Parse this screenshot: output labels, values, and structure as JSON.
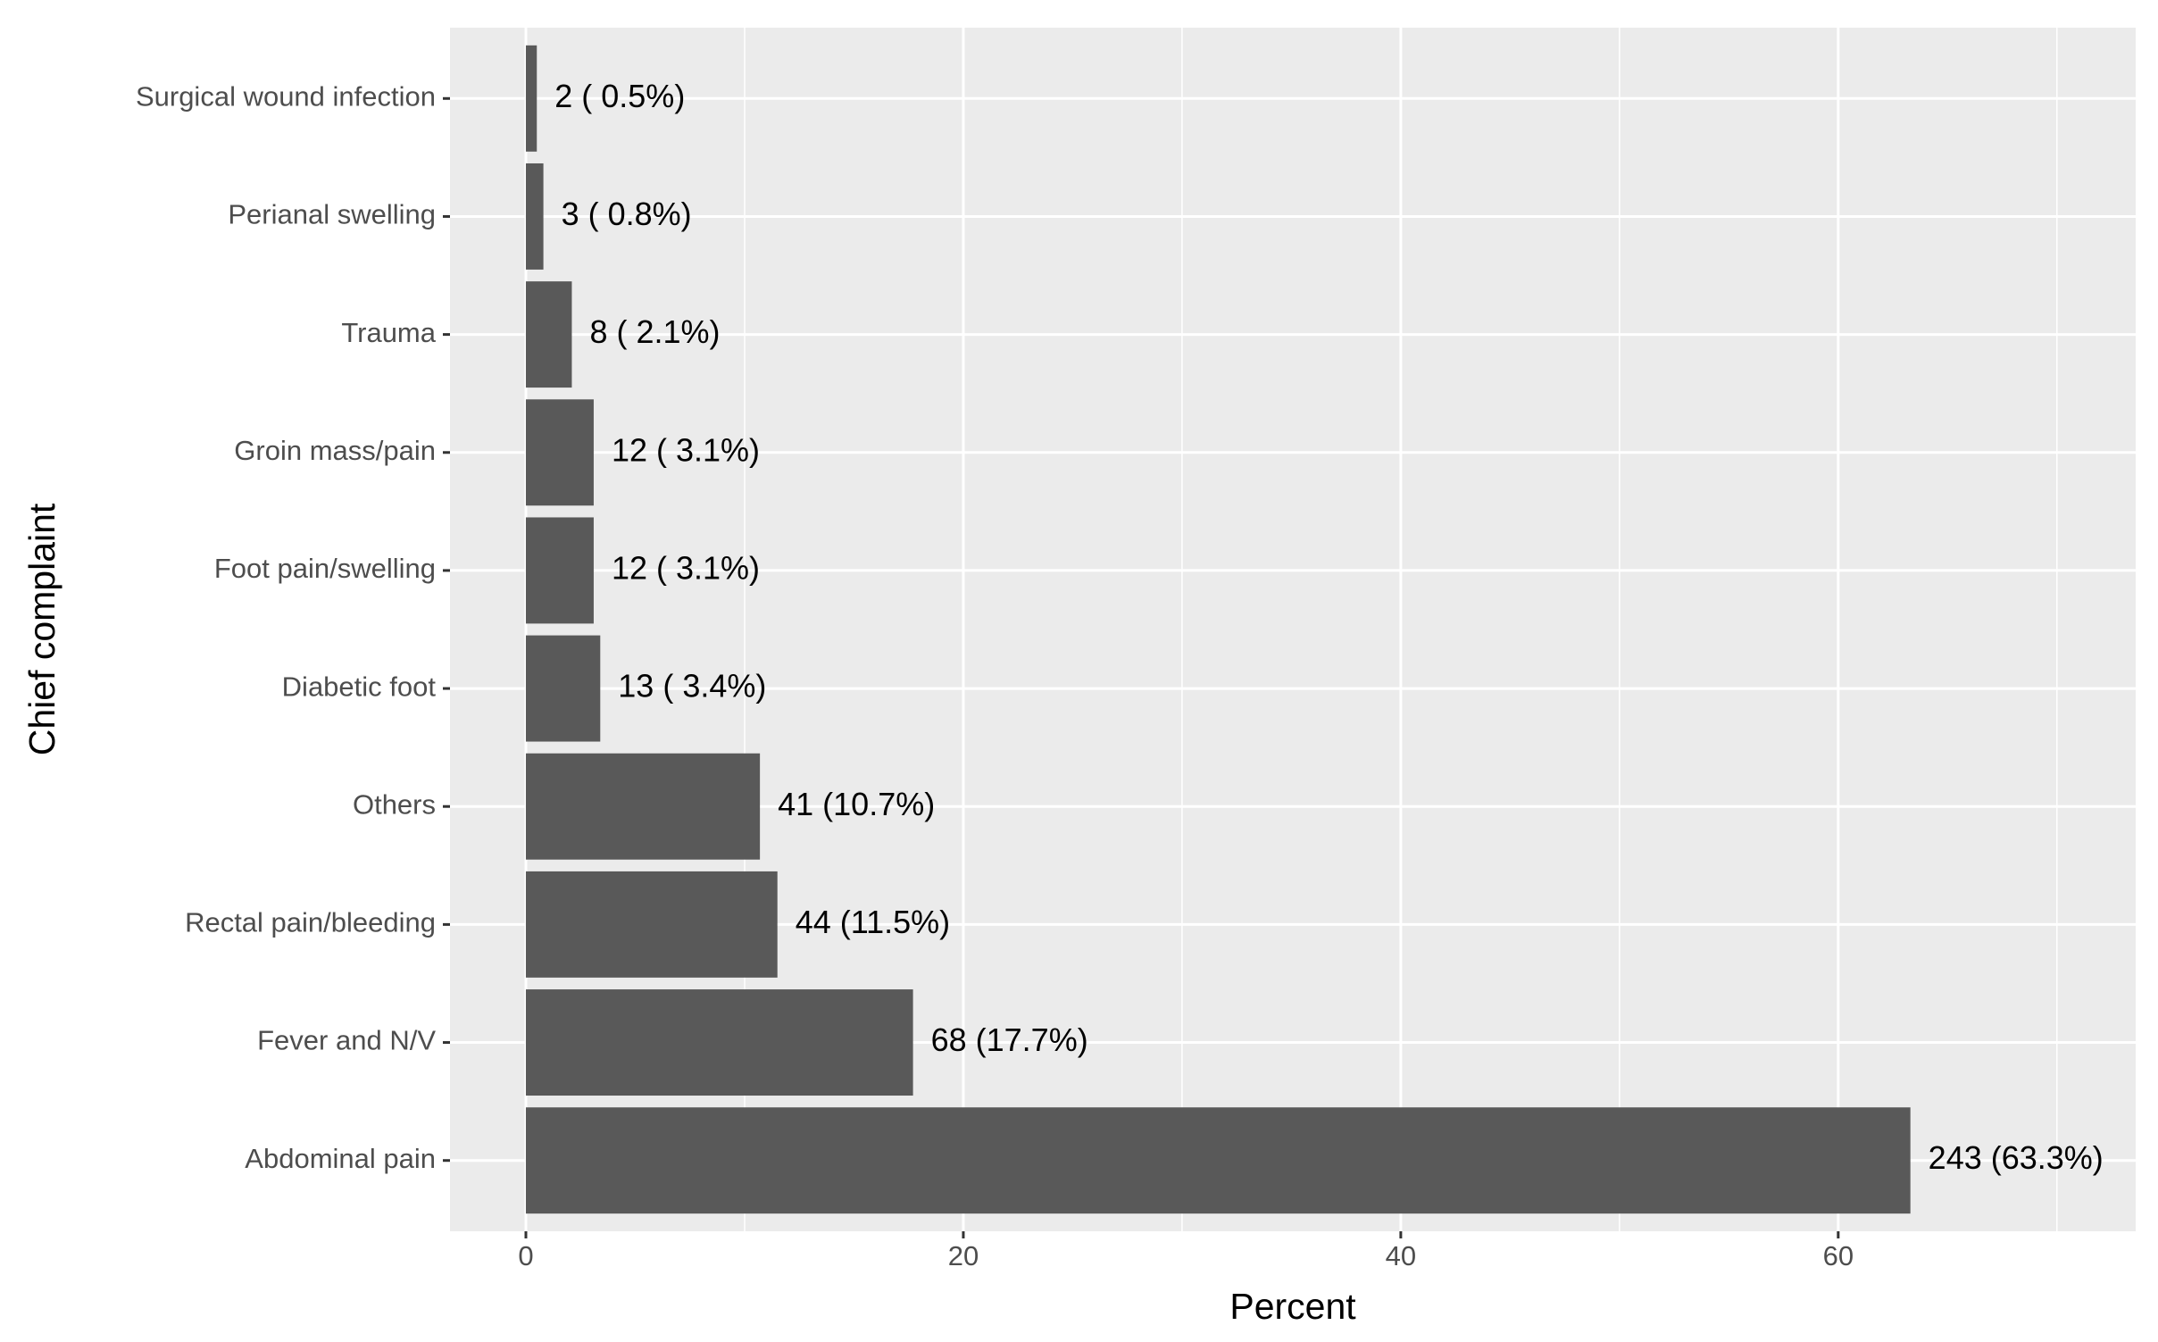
{
  "chart_data": {
    "type": "hbar",
    "x_label": "Percent",
    "y_label": "Chief complaint",
    "categories": [
      "Surgical wound infection",
      "Perianal swelling",
      "Trauma",
      "Groin mass/pain",
      "Foot pain/swelling",
      "Diabetic foot",
      "Others",
      "Rectal pain/bleeding",
      "Fever and N/V",
      "Abdominal pain"
    ],
    "values": [
      0.5,
      0.8,
      2.1,
      3.1,
      3.1,
      3.4,
      10.7,
      11.5,
      17.7,
      63.3
    ],
    "value_labels": [
      "2 ( 0.5%)",
      "3 ( 0.8%)",
      "8 ( 2.1%)",
      "12 ( 3.1%)",
      "12 ( 3.1%)",
      "13 ( 3.4%)",
      "41 (10.7%)",
      "44 (11.5%)",
      "68 (17.7%)",
      "243 (63.3%)"
    ],
    "color": "#595959",
    "xlim": [
      -3.47,
      73.6
    ],
    "xticks": [
      0,
      20,
      40,
      60
    ],
    "grid": true,
    "minor_grid": true
  }
}
